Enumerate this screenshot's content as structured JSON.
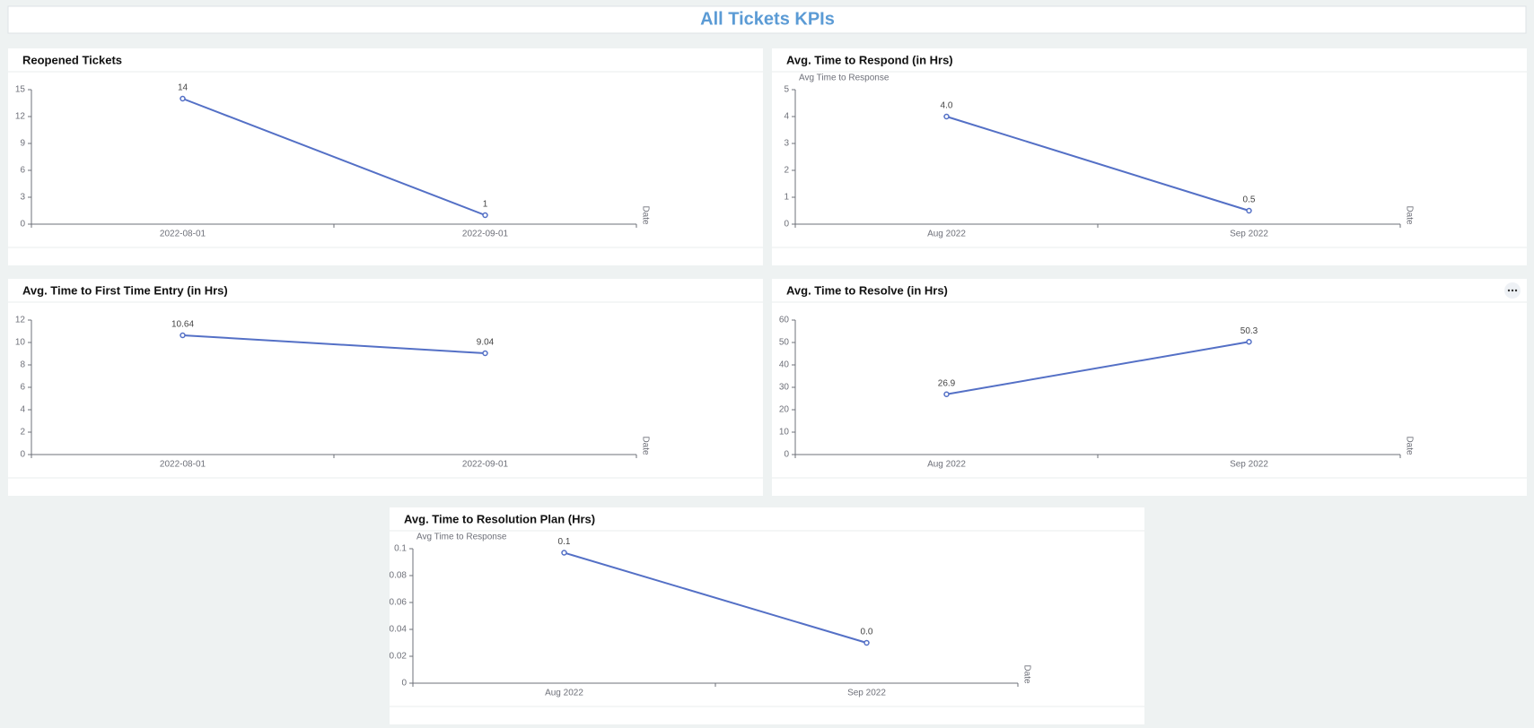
{
  "header": {
    "title": "All Tickets KPIs"
  },
  "chart_data": [
    {
      "type": "line",
      "title": "Reopened Tickets",
      "categories": [
        "2022-08-01",
        "2022-09-01"
      ],
      "values": [
        14,
        1
      ],
      "color": "#5470c6",
      "ylim": [
        0,
        15
      ],
      "yticks": [
        0,
        3,
        6,
        9,
        12,
        15
      ],
      "xlabel": "Date"
    },
    {
      "type": "line",
      "title": "Avg. Time to Respond (in Hrs)",
      "ylabel": "Avg Time to Response",
      "categories": [
        "Aug 2022",
        "Sep 2022"
      ],
      "values": [
        4.0,
        0.5
      ],
      "value_labels": [
        "4.0",
        "0.5"
      ],
      "color": "#5470c6",
      "ylim": [
        0,
        5
      ],
      "yticks": [
        0,
        1,
        2,
        3,
        4,
        5
      ],
      "xlabel": "Date"
    },
    {
      "type": "line",
      "title": "Avg. Time to First Time Entry (in Hrs)",
      "categories": [
        "2022-08-01",
        "2022-09-01"
      ],
      "values": [
        10.64,
        9.04
      ],
      "color": "#5470c6",
      "ylim": [
        0,
        12
      ],
      "yticks": [
        0,
        2,
        4,
        6,
        8,
        10,
        12
      ],
      "xlabel": "Date"
    },
    {
      "type": "line",
      "title": "Avg. Time to Resolve (in Hrs)",
      "categories": [
        "Aug 2022",
        "Sep 2022"
      ],
      "values": [
        26.9,
        50.3
      ],
      "color": "#5470c6",
      "ylim": [
        0,
        60
      ],
      "yticks": [
        0,
        10,
        20,
        30,
        40,
        50,
        60
      ],
      "xlabel": "Date"
    },
    {
      "type": "line",
      "title": "Avg. Time to Resolution Plan (Hrs)",
      "ylabel": "Avg Time to Response",
      "categories": [
        "Aug 2022",
        "Sep 2022"
      ],
      "values": [
        0.097,
        0.03
      ],
      "value_labels": [
        "0.1",
        "0.0"
      ],
      "color": "#5470c6",
      "ylim": [
        0,
        0.1
      ],
      "yticks": [
        0,
        0.02,
        0.04,
        0.06,
        0.08,
        0.1
      ],
      "xlabel": "Date"
    }
  ]
}
